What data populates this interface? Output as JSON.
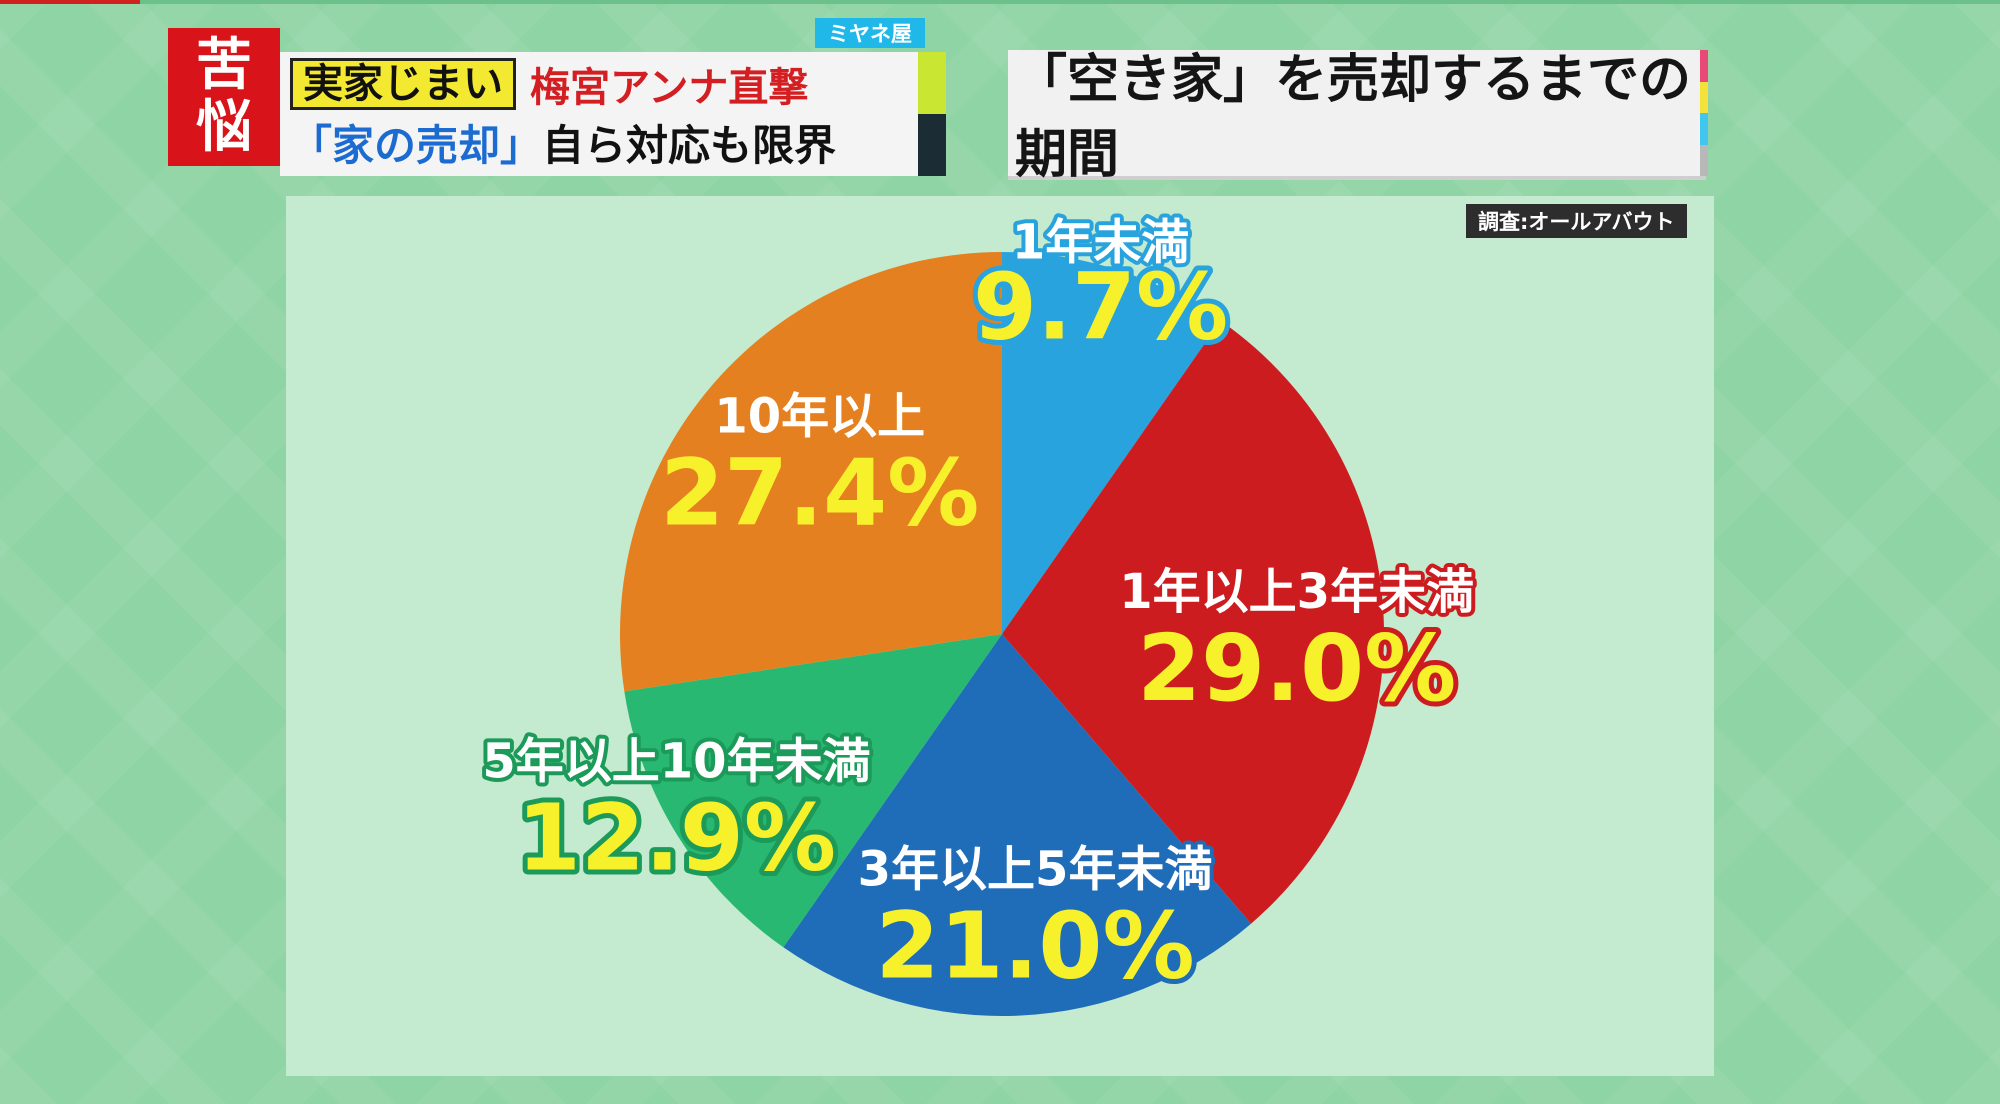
{
  "header": {
    "tag_kanji": [
      "苦",
      "悩"
    ],
    "brand": "ミヤネ屋",
    "topic_label": "実家じまい",
    "reporter": "梅宮アンナ直撃",
    "subtitle_quote": "「家の売却」",
    "subtitle_rest": "自ら対応も限界"
  },
  "title": "「空き家」を売却するまでの期間",
  "source": "調査:オールアバウト",
  "colors": {
    "header_red": "#d8141a",
    "header_lime": "#c9e632",
    "brand_blue": "#1fb8e8",
    "title_accents": [
      "#e84a78",
      "#f2e23a",
      "#41c6ef",
      "#b8b8b8"
    ]
  },
  "chart_data": {
    "type": "pie",
    "start_angle_deg": 0,
    "direction": "clockwise",
    "slices": [
      {
        "label": "1年未満",
        "value": 9.7,
        "value_label": "9.7%",
        "color": "#29a3de",
        "text_color": "#ffffff",
        "outline": "#29a3de"
      },
      {
        "label": "1年以上3年未満",
        "value": 29.0,
        "value_label": "29.0%",
        "color": "#cc1c1f",
        "text_color": "#ffffff",
        "outline": "#cc1c1f"
      },
      {
        "label": "3年以上5年未満",
        "value": 21.0,
        "value_label": "21.0%",
        "color": "#1f6db8",
        "text_color": "#ffffff",
        "outline": "#1f6db8"
      },
      {
        "label": "5年以上10年未満",
        "value": 12.9,
        "value_label": "12.9%",
        "color": "#29b872",
        "text_color": "#ffffff",
        "outline": "#1b9a5a"
      },
      {
        "label": "10年以上",
        "value": 27.4,
        "value_label": "27.4%",
        "color": "#e58020",
        "text_color": "#ffffff",
        "outline": "#e58020"
      }
    ],
    "value_text_color": "#f7f12c"
  }
}
